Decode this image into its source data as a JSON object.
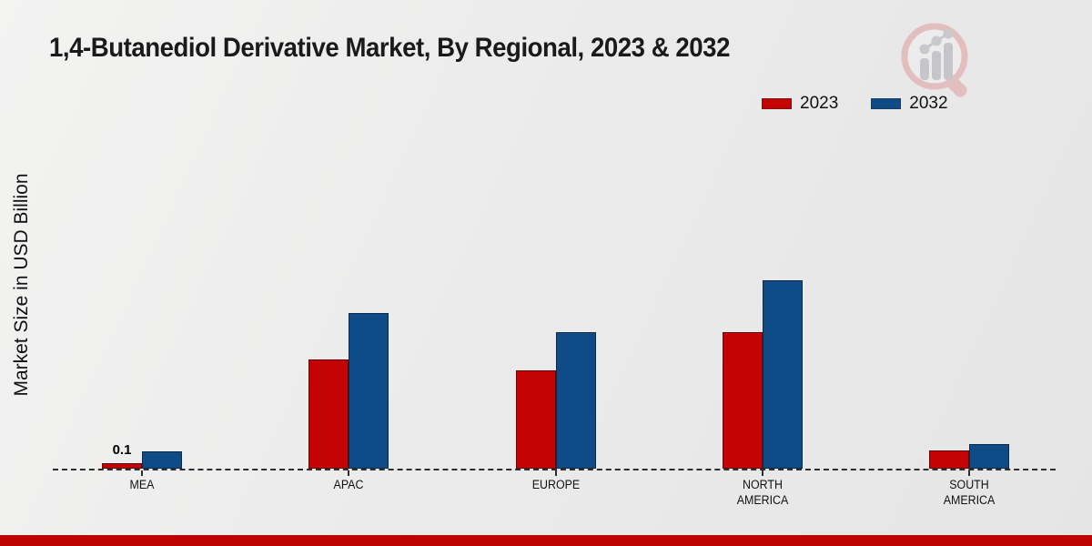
{
  "title": "1,4-Butanediol Derivative Market, By Regional, 2023 & 2032",
  "y_axis_label": "Market Size in USD Billion",
  "legend": {
    "position": "top-right"
  },
  "branding": {
    "logo_icon": "magnifier-growth-chart-logo"
  },
  "footer": {
    "accent_bar_color": "#bd0400"
  },
  "chart_data": {
    "type": "bar",
    "title": "1,4-Butanediol Derivative Market, By Regional, 2023 & 2032",
    "xlabel": "",
    "ylabel": "Market Size in USD Billion",
    "categories": [
      "MEA",
      "APAC",
      "EUROPE",
      "NORTH AMERICA",
      "SOUTH AMERICA"
    ],
    "series": [
      {
        "name": "2023",
        "color": "#c40404",
        "values": [
          0.1,
          2.0,
          1.8,
          2.5,
          0.33
        ]
      },
      {
        "name": "2032",
        "color": "#0f4c87",
        "values": [
          0.32,
          2.85,
          2.5,
          3.45,
          0.45
        ]
      }
    ],
    "annotations": [
      {
        "series_index": 0,
        "category_index": 0,
        "text": "0.1"
      }
    ],
    "ylim": [
      0,
      4
    ],
    "grid": false,
    "y_tick_labels_visible": false,
    "axis_style": "dashed-baseline-only",
    "legend_position": "top-right"
  }
}
